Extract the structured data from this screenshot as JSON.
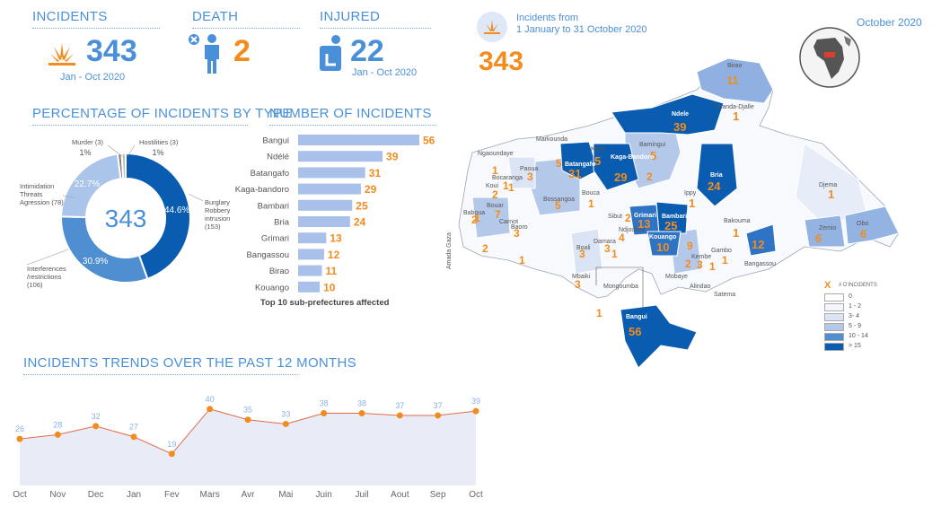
{
  "kpis": {
    "incidents": {
      "title": "INCIDENTS",
      "value": "343",
      "period": "Jan - Oct 2020"
    },
    "death": {
      "title": "DEATH",
      "value": "2"
    },
    "injured": {
      "title": "INJURED",
      "value": "22",
      "period": "Jan - Oct 2020"
    }
  },
  "map_header": {
    "line1": "Incidents from",
    "line2": "1 January to 31 October 2020",
    "total": "343",
    "date": "October 2020"
  },
  "colors": {
    "accent_blue": "#4a90d9",
    "orange": "#f28c1e",
    "dark_blue": "#0a5cb0",
    "mid_blue": "#4f8fd1",
    "light_blue": "#9ebce6",
    "pale_blue": "#cfdcf2"
  },
  "chart_data": [
    {
      "type": "pie",
      "title": "PERCENTAGE OF INCIDENTS BY TYPE",
      "center_label": "343",
      "slices": [
        {
          "name": "Burglary Robbery intrusion",
          "count": "(153)",
          "percent": 44.6,
          "label": "44.6%",
          "color": "#0a5cb0"
        },
        {
          "name": "Interferences /restrictions",
          "count": "(106)",
          "percent": 30.9,
          "label": "30.9%",
          "color": "#4f8fd1"
        },
        {
          "name": "Intimidation Threats Agression",
          "count": "(78)",
          "percent": 22.7,
          "label": "22.7%",
          "color": "#aac4ea"
        },
        {
          "name": "Murder",
          "count": "(3)",
          "percent": 1,
          "label": "1%",
          "color": "#7f7f7f"
        },
        {
          "name": "Hostilities",
          "count": "(3)",
          "percent": 1,
          "label": "1%",
          "color": "#bfbfbf"
        }
      ]
    },
    {
      "type": "bar",
      "title": "NUMBER OF INCIDENTS",
      "caption": "Top 10 sub-prefectures affected",
      "categories": [
        "Bangui",
        "Ndélé",
        "Batangafo",
        "Kaga-bandoro",
        "Bambari",
        "Bria",
        "Grimari",
        "Bangassou",
        "Birao",
        "Kouango"
      ],
      "values": [
        56,
        39,
        31,
        29,
        25,
        24,
        13,
        12,
        11,
        10
      ]
    },
    {
      "type": "line",
      "title": "INCIDENTS TRENDS OVER THE PAST 12 MONTHS",
      "categories": [
        "Oct",
        "Nov",
        "Dec",
        "Jan",
        "Fev",
        "Mars",
        "Avr",
        "Mai",
        "Juin",
        "Juil",
        "Aout",
        "Sep",
        "Oct"
      ],
      "values": [
        26,
        28,
        32,
        27,
        19,
        40,
        35,
        33,
        38,
        38,
        37,
        37,
        39
      ]
    }
  ],
  "map": {
    "regions": [
      {
        "name": "Birao",
        "value": "11"
      },
      {
        "name": "Ouanda-Djalle",
        "value": "1"
      },
      {
        "name": "Ndele",
        "value": "39"
      },
      {
        "name": "Bamingui",
        "value": "5"
      },
      {
        "name": "Kabo",
        "value": "5"
      },
      {
        "name": "Batangafo",
        "value": "31"
      },
      {
        "name": "Kaga-Bandoro",
        "value": "29"
      },
      {
        "name": "Bria",
        "value": "24"
      },
      {
        "name": "Djema",
        "value": "1"
      },
      {
        "name": "Ippy",
        "value": "1"
      },
      {
        "name": "Grimari",
        "value": "13"
      },
      {
        "name": "Bambari",
        "value": "25"
      },
      {
        "name": "Kouango",
        "value": "10"
      },
      {
        "name": "Bangui",
        "value": "56"
      },
      {
        "name": "Bakouma",
        "value": "1"
      },
      {
        "name": "Zemio",
        "value": "6"
      },
      {
        "name": "Obo",
        "value": "6"
      },
      {
        "name": "Bangassou",
        "value": "12"
      }
    ],
    "other_numbers": [
      "1",
      "3",
      "1",
      "2",
      "1",
      "5",
      "1",
      "5",
      "2",
      "7",
      "1",
      "3",
      "2",
      "2",
      "1",
      "3",
      "4",
      "3",
      "1",
      "9",
      "2",
      "3",
      "1",
      "1",
      "1",
      "2",
      "3"
    ],
    "place_labels": [
      "Ngaoundaye",
      "Markounda",
      "Paoua",
      "Bocaranga",
      "Koui",
      "Bossangoa",
      "Bouca",
      "Baboua",
      "Bouar",
      "Baoro",
      "Carnot",
      "Sibut",
      "Damara",
      "Ndjoukou",
      "Boali",
      "Mbaiki",
      "Mongoumba",
      "Mobaye",
      "Alindao",
      "Kembe",
      "Gambo",
      "Satema",
      "Amada Gaza",
      "Bangassou"
    ],
    "legend": {
      "x": "X",
      "title": "# D'INCIDENTS",
      "items": [
        "0",
        "1 - 2",
        "3- 4",
        "5 - 9",
        "10 - 14",
        "> 15"
      ]
    }
  }
}
